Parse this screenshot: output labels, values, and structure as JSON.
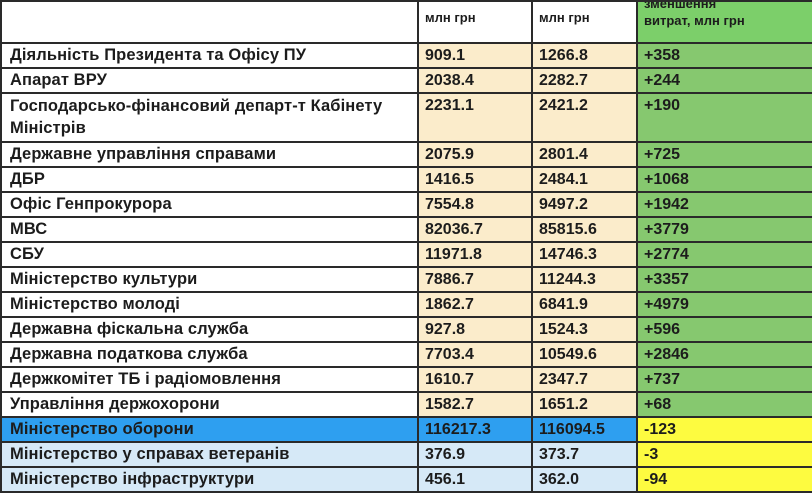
{
  "header": {
    "col1": "млн грн",
    "col2": "млн грн",
    "col3_line1": "зменшення",
    "col3_line2": "витрат, млн грн"
  },
  "rows": [
    {
      "name": "Діяльність Президента та Офісу ПУ",
      "v1": "909.1",
      "v2": "1266.8",
      "delta": "+358"
    },
    {
      "name": "Апарат ВРУ",
      "v1": "2038.4",
      "v2": "2282.7",
      "delta": "+244"
    },
    {
      "name": "Господарсько-фінансовий департ-т Кабінету Міністрів",
      "v1": "2231.1",
      "v2": "2421.2",
      "delta": "+190"
    },
    {
      "name": "Державне управління справами",
      "v1": "2075.9",
      "v2": "2801.4",
      "delta": "+725"
    },
    {
      "name": "ДБР",
      "v1": "1416.5",
      "v2": "2484.1",
      "delta": "+1068"
    },
    {
      "name": "Офіс Генпрокурора",
      "v1": "7554.8",
      "v2": "9497.2",
      "delta": "+1942"
    },
    {
      "name": "МВС",
      "v1": "82036.7",
      "v2": "85815.6",
      "delta": "+3779"
    },
    {
      "name": "СБУ",
      "v1": "11971.8",
      "v2": "14746.3",
      "delta": "+2774"
    },
    {
      "name": "Міністерство культури",
      "v1": "7886.7",
      "v2": "11244.3",
      "delta": "+3357"
    },
    {
      "name": "Міністерство молоді",
      "v1": "1862.7",
      "v2": "6841.9",
      "delta": "+4979"
    },
    {
      "name": "Державна фіскальна служба",
      "v1": "927.8",
      "v2": "1524.3",
      "delta": "+596"
    },
    {
      "name": "Державна податкова служба",
      "v1": "7703.4",
      "v2": "10549.6",
      "delta": "+2846"
    },
    {
      "name": "Держкомітет ТБ і радіомовлення",
      "v1": "1610.7",
      "v2": "2347.7",
      "delta": "+737"
    },
    {
      "name": "Управління держохорони",
      "v1": "1582.7",
      "v2": "1651.2",
      "delta": "+68"
    },
    {
      "name": "Міністерство оборони",
      "v1": "116217.3",
      "v2": "116094.5",
      "delta": "-123"
    },
    {
      "name": "Міністерство у справах ветеранів",
      "v1": "376.9",
      "v2": "373.7",
      "delta": "-3"
    },
    {
      "name": "Міністерство інфраструктури",
      "v1": "456.1",
      "v2": "362.0",
      "delta": "-94"
    }
  ],
  "colors": {
    "value_cell": "#fbeccb",
    "increase_cell": "#86c86f",
    "decrease_cell": "#fdfb40",
    "highlight_row": "#2e9ff0",
    "light_row": "#d6e9f7"
  }
}
